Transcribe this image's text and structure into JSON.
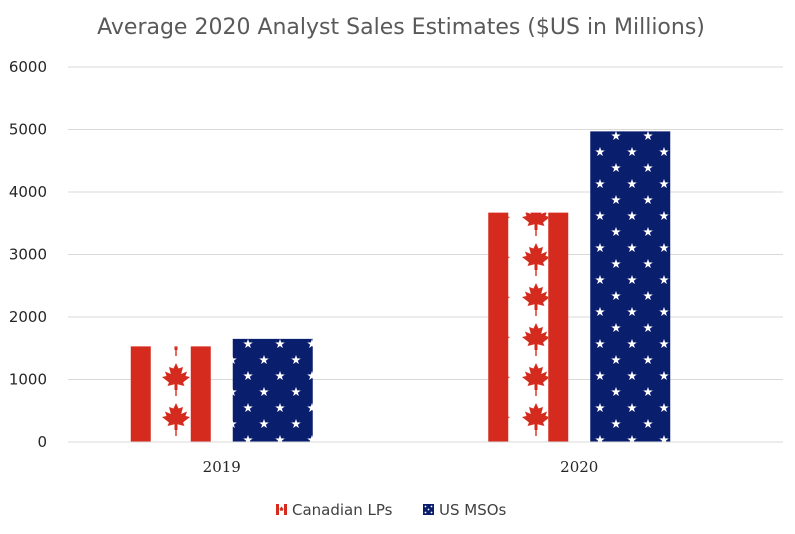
{
  "chart_data": {
    "type": "bar",
    "title": "Average 2020 Analyst Sales Estimates ($US in Millions)",
    "xlabel": "",
    "ylabel": "",
    "categories": [
      "2019",
      "2020"
    ],
    "ylim": [
      0,
      6000
    ],
    "yticks": [
      "0",
      "1000",
      "2000",
      "3000",
      "4000",
      "5000",
      "6000"
    ],
    "grid": true,
    "legend_position": "bottom",
    "series": [
      {
        "name": "Canadian LPs",
        "values": [
          1530,
          3670
        ],
        "fill": "canada-flag-pattern",
        "colors": [
          "#d52b1e",
          "#ffffff"
        ]
      },
      {
        "name": "US MSOs",
        "values": [
          1650,
          4970
        ],
        "fill": "us-stars-pattern",
        "colors": [
          "#0a1e6e",
          "#ffffff"
        ]
      }
    ]
  }
}
